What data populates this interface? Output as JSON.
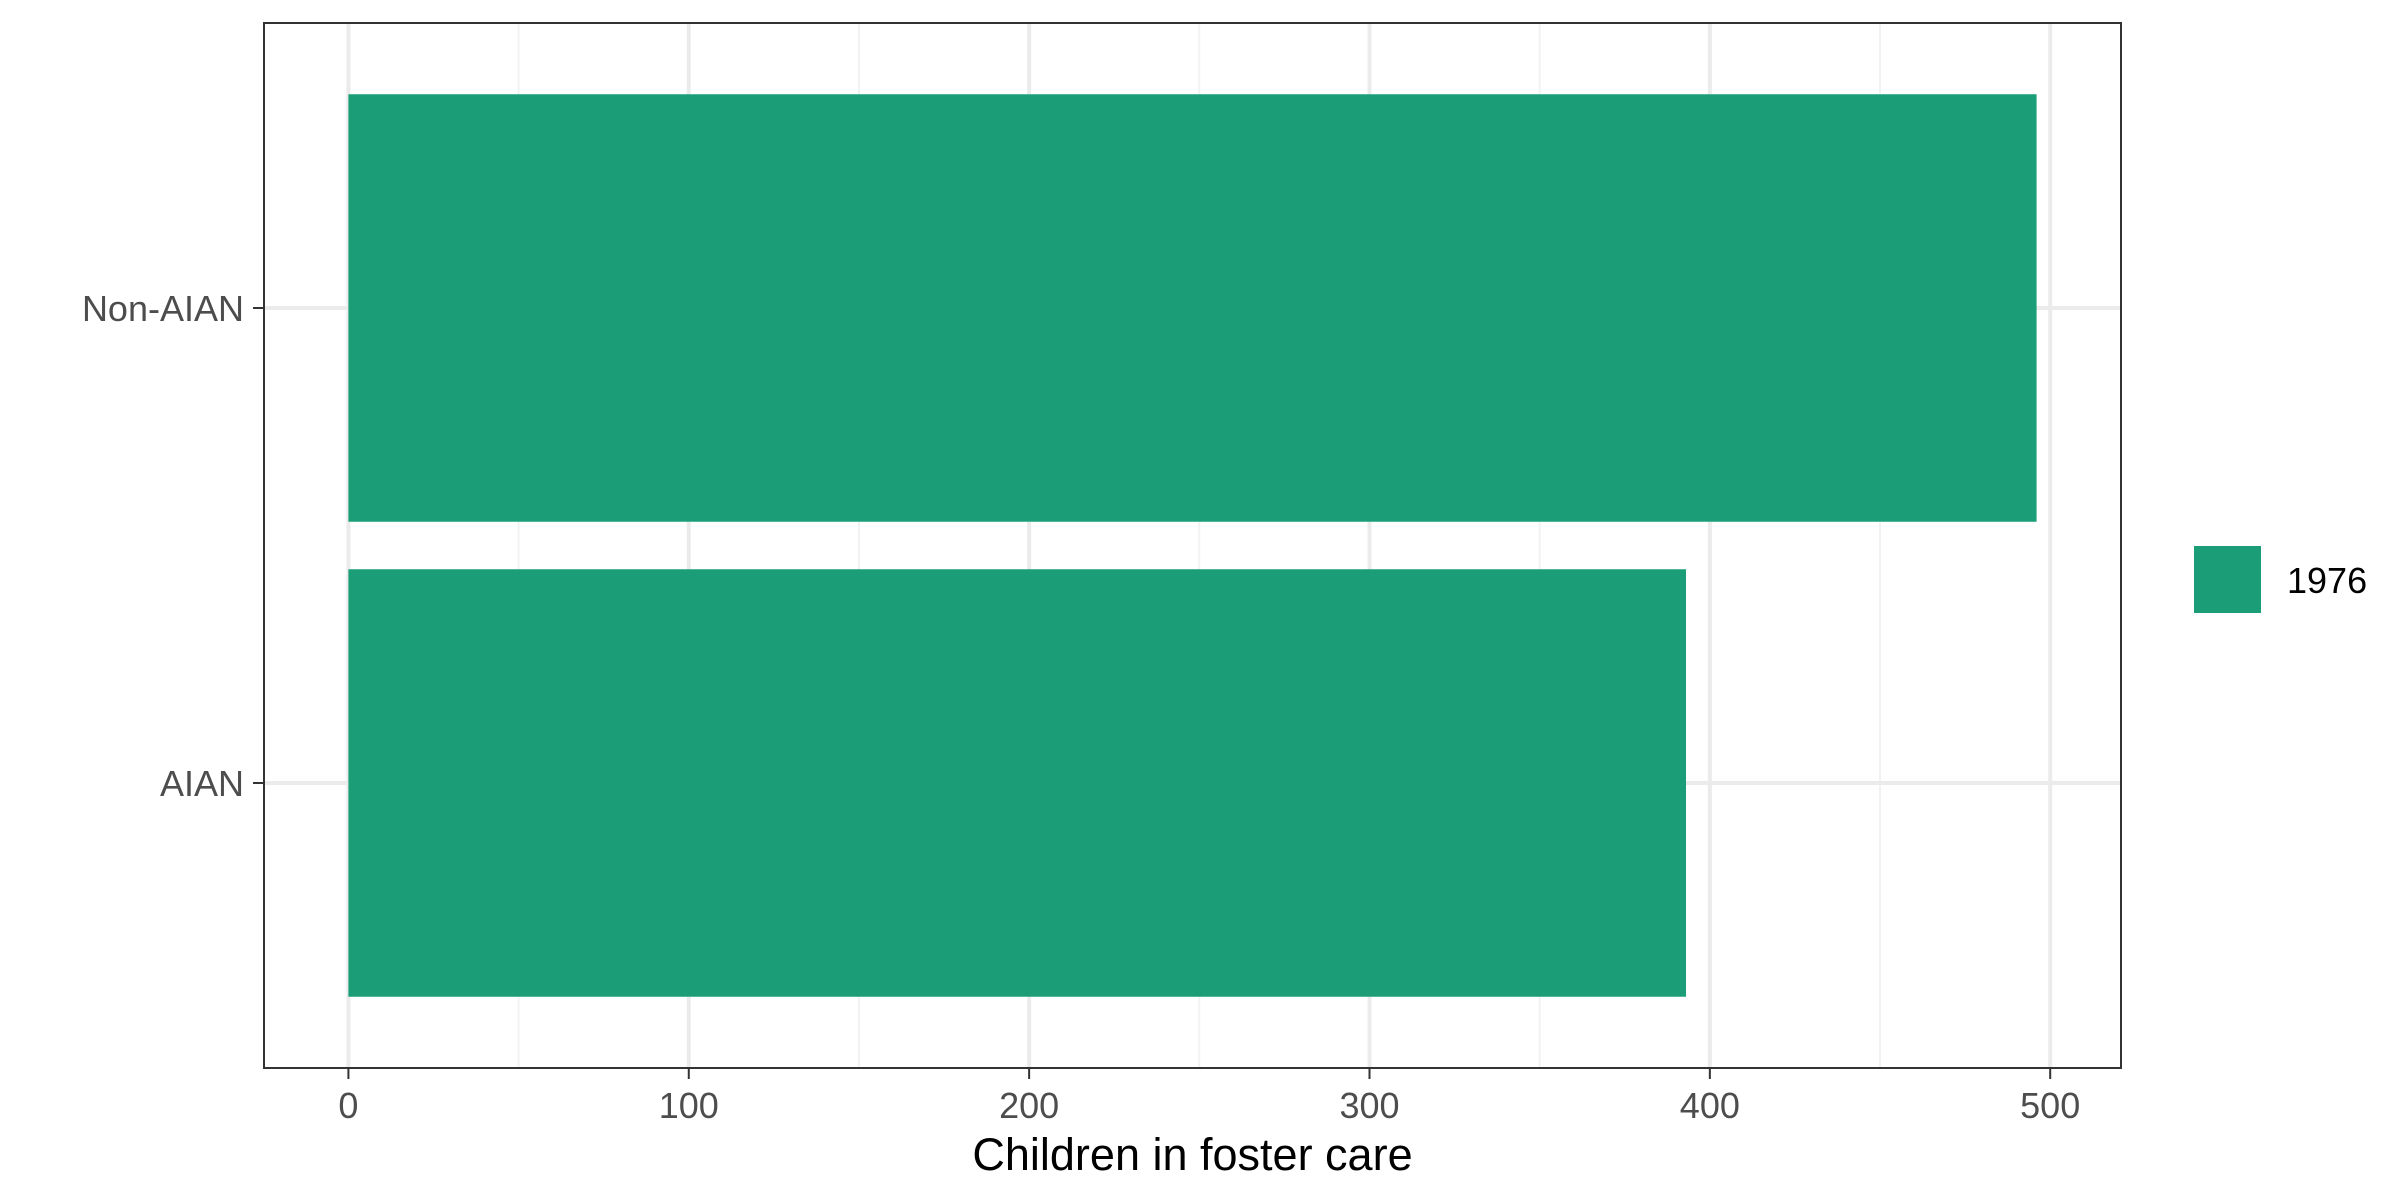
{
  "chart_data": {
    "type": "bar",
    "orientation": "horizontal",
    "categories": [
      "Non-AIAN",
      "AIAN"
    ],
    "series": [
      {
        "name": "1976",
        "values": [
          496,
          393
        ],
        "color": "#1b9e77"
      }
    ],
    "xlabel": "Children in foster care",
    "ylabel": "",
    "xlim": [
      -24.8,
      520.8
    ],
    "x_ticks": [
      0,
      100,
      200,
      300,
      400,
      500
    ],
    "x_tick_labels": [
      "0",
      "100",
      "200",
      "300",
      "400",
      "500"
    ],
    "grid": true,
    "legend_position": "right",
    "colors": {
      "background": "#ffffff",
      "grid_major": "#ebebeb",
      "grid_minor": "#f2f2f2",
      "panel_border": "#333333",
      "tick_text": "#4d4d4d",
      "axis_title": "#000000"
    }
  }
}
